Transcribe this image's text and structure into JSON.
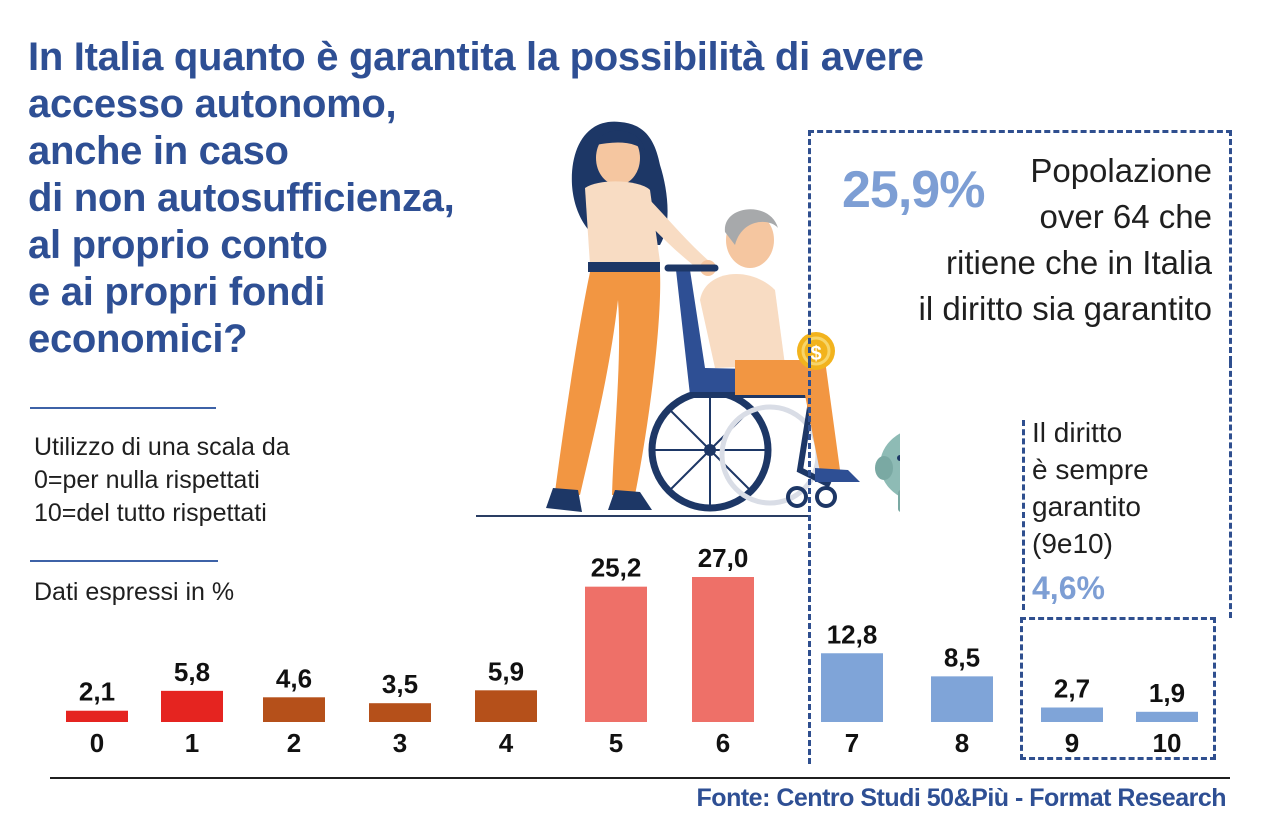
{
  "title_lines": [
    "In Italia quanto è garantita la possibilità di avere",
    "accesso autonomo,",
    "anche in caso",
    "di non autosufficienza,",
    "al proprio conto",
    "e ai propri fondi",
    "economici?"
  ],
  "scale_note": [
    "Utilizzo di una scala da",
    "0=per nulla rispettati",
    "10=del tutto rispettati"
  ],
  "units_note": "Dati espressi in %",
  "highlight": {
    "value": "25,9%",
    "text_lines": [
      "Popolazione",
      "over 64 che",
      "ritiene che in Italia",
      "il diritto sia garantito"
    ]
  },
  "sub_highlight": {
    "text_lines": [
      "Il diritto",
      "è sempre",
      "garantito",
      "(9e10)"
    ],
    "value": "4,6%"
  },
  "source": "Fonte: Centro Studi 50&Più - Format Research",
  "illustration": {
    "icons": [
      "caregiver-woman-icon",
      "elderly-woman-wheelchair-icon",
      "coin-icon",
      "piggy-bank-icon"
    ]
  },
  "chart_data": {
    "type": "bar",
    "categories": [
      "0",
      "1",
      "2",
      "3",
      "4",
      "5",
      "6",
      "7",
      "8",
      "9",
      "10"
    ],
    "values": [
      2.1,
      5.8,
      4.6,
      3.5,
      5.9,
      25.2,
      27.0,
      12.8,
      8.5,
      2.7,
      1.9
    ],
    "value_labels": [
      "2,1",
      "5,8",
      "4,6",
      "3,5",
      "5,9",
      "25,2",
      "27,0",
      "12,8",
      "8,5",
      "2,7",
      "1,9"
    ],
    "colors": [
      "#e52420",
      "#e52420",
      "#b5501a",
      "#b5501a",
      "#b5501a",
      "#ee7068",
      "#ee7068",
      "#7fa4d8",
      "#7fa4d8",
      "#7fa4d8",
      "#7fa4d8"
    ],
    "grid": false,
    "ylim": [
      0,
      27.0
    ]
  }
}
